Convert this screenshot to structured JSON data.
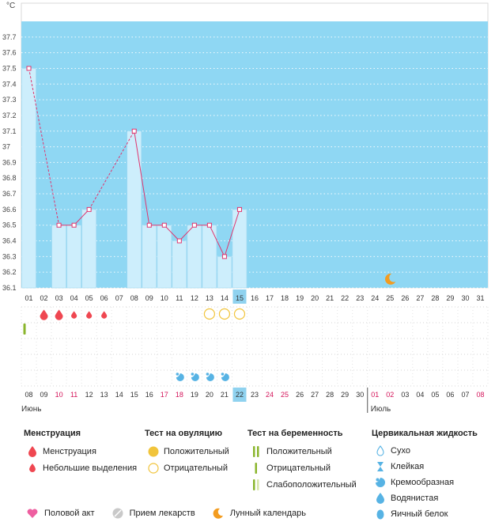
{
  "chart_data": {
    "type": "bar",
    "unit_label": "°C",
    "ylim": [
      36.1,
      37.8
    ],
    "y_ticks": [
      "37.7",
      "37.6",
      "37.5",
      "37.4",
      "37.3",
      "37.2",
      "37.1",
      "37",
      "36.9",
      "36.8",
      "36.7",
      "36.6",
      "36.5",
      "36.4",
      "36.3",
      "36.2",
      "36.1"
    ],
    "cycle_days": [
      "01",
      "02",
      "03",
      "04",
      "05",
      "06",
      "07",
      "08",
      "09",
      "10",
      "11",
      "12",
      "13",
      "14",
      "15",
      "16",
      "17",
      "18",
      "19",
      "20",
      "21",
      "22",
      "23",
      "24",
      "25",
      "26",
      "27",
      "28",
      "29",
      "30",
      "31"
    ],
    "current_cycle_day": "15",
    "temperatures": [
      37.5,
      null,
      36.5,
      36.5,
      36.6,
      null,
      null,
      37.1,
      36.5,
      36.5,
      36.4,
      36.5,
      36.5,
      36.3,
      36.6,
      null,
      null,
      null,
      null,
      null,
      null,
      null,
      null,
      null,
      null,
      null,
      null,
      null,
      null,
      null,
      null
    ],
    "calendar_dates": [
      "08",
      "09",
      "10",
      "11",
      "12",
      "13",
      "14",
      "15",
      "16",
      "17",
      "18",
      "19",
      "20",
      "21",
      "22",
      "23",
      "24",
      "25",
      "26",
      "27",
      "28",
      "29",
      "30",
      "01",
      "02",
      "03",
      "04",
      "05",
      "06",
      "07",
      "08"
    ],
    "weekend_dates_index": [
      2,
      3,
      9,
      10,
      16,
      17,
      23,
      24,
      30
    ],
    "today_index": 14,
    "months": [
      "Июнь",
      "Июль"
    ],
    "month_break_index": 23,
    "menstruation": [
      null,
      "heavy",
      "heavy",
      "light",
      "light",
      "light"
    ],
    "ovulation_negative_days": [
      12,
      13,
      14
    ],
    "pregnancy_positive_days": [
      0
    ],
    "fluid_creamy_days": [
      10,
      11,
      12,
      13
    ],
    "moon_day": 24
  },
  "legend": {
    "menstruation": {
      "title": "Менструация",
      "items": [
        "Менструация",
        "Небольшие выделения"
      ]
    },
    "ovulation": {
      "title": "Тест на овуляцию",
      "items": [
        "Положительный",
        "Отрицательный"
      ]
    },
    "pregnancy": {
      "title": "Тест на беременность",
      "items": [
        "Положительный",
        "Отрицательный",
        "Слабоположительный"
      ]
    },
    "fluid": {
      "title": "Цервикальная жидкость",
      "items": [
        "Сухо",
        "Клейкая",
        "Кремообразная",
        "Водянистая",
        "Яичный белок"
      ]
    },
    "bottom": [
      "Половой акт",
      "Прием лекарств",
      "Лунный календарь"
    ]
  },
  "colors": {
    "sky": "#8fd7f3",
    "bar": "#cdeefc",
    "line": "#e0356e",
    "drop": "#ef4751",
    "ovulation": "#f1c43b",
    "pregnancy": "#8ab52c",
    "fluid": "#57b3e4",
    "moon": "#f39c20",
    "heart": "#ee5fa0",
    "weekend": "#d4145a",
    "today_bg": "#8fd2ef"
  }
}
